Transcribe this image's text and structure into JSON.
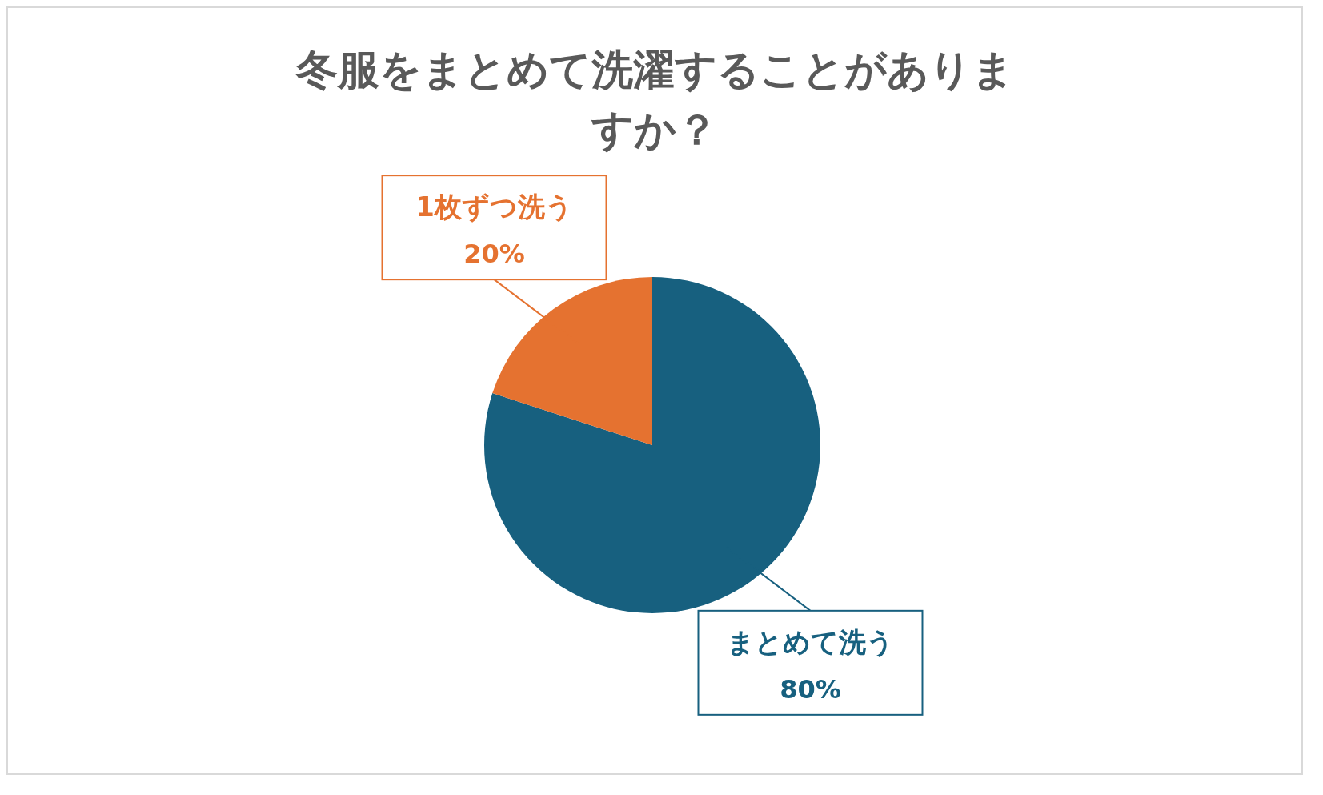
{
  "chart_data": {
    "type": "pie",
    "title": "冬服をまとめて洗濯することがありますか？",
    "categories": [
      "まとめて洗う",
      "1枚ずつ洗う"
    ],
    "values": [
      80,
      20
    ],
    "value_labels": [
      "80%",
      "20%"
    ],
    "colors": [
      "#17607f",
      "#e57230"
    ]
  }
}
